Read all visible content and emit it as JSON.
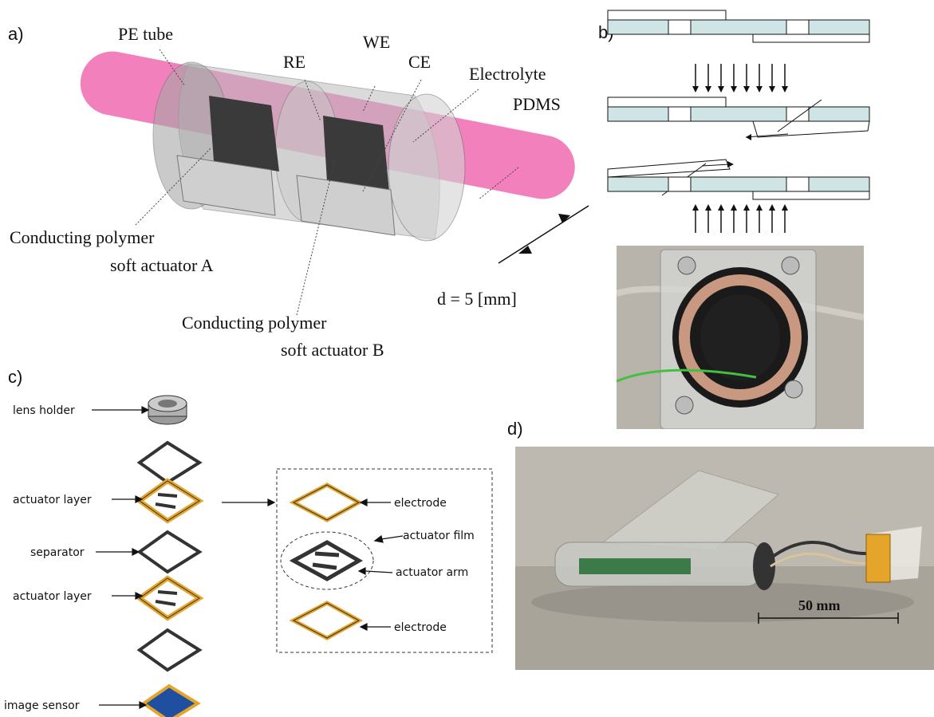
{
  "panel_a": {
    "tag": "a)",
    "labels": {
      "pe_tube": "PE tube",
      "re": "RE",
      "we": "WE",
      "ce": "CE",
      "electrolyte": "Electrolyte",
      "pdms": "PDMS",
      "actuator_a_line1": "Conducting polymer",
      "actuator_a_line2": "soft actuator A",
      "actuator_b_line1": "Conducting polymer",
      "actuator_b_line2": "soft actuator B",
      "diameter": "d = 5 [mm]"
    },
    "colors": {
      "pink": "#f06ab0",
      "grey": "#b9b9b9",
      "dark": "#3a3a3a"
    }
  },
  "panel_b": {
    "tag": "b)",
    "colors": {
      "plate": "#cfe5e5",
      "photo_bg": "#b9b4ab"
    }
  },
  "panel_c": {
    "tag": "c)",
    "labels": {
      "lens_holder": "lens holder",
      "actuator_layer_1": "actuator layer",
      "separator": "separator",
      "actuator_layer_2": "actuator layer",
      "image_sensor": "image sensor",
      "electrode_top": "electrode",
      "actuator_film": "actuator film",
      "actuator_arm": "actuator arm",
      "electrode_bottom": "electrode"
    },
    "colors": {
      "gold": "#e5a52a",
      "sensor": "#1f4fa0"
    }
  },
  "panel_d": {
    "tag": "d)",
    "scale_label": "50 mm",
    "colors": {
      "photo_bg": "#a8a49a"
    }
  }
}
